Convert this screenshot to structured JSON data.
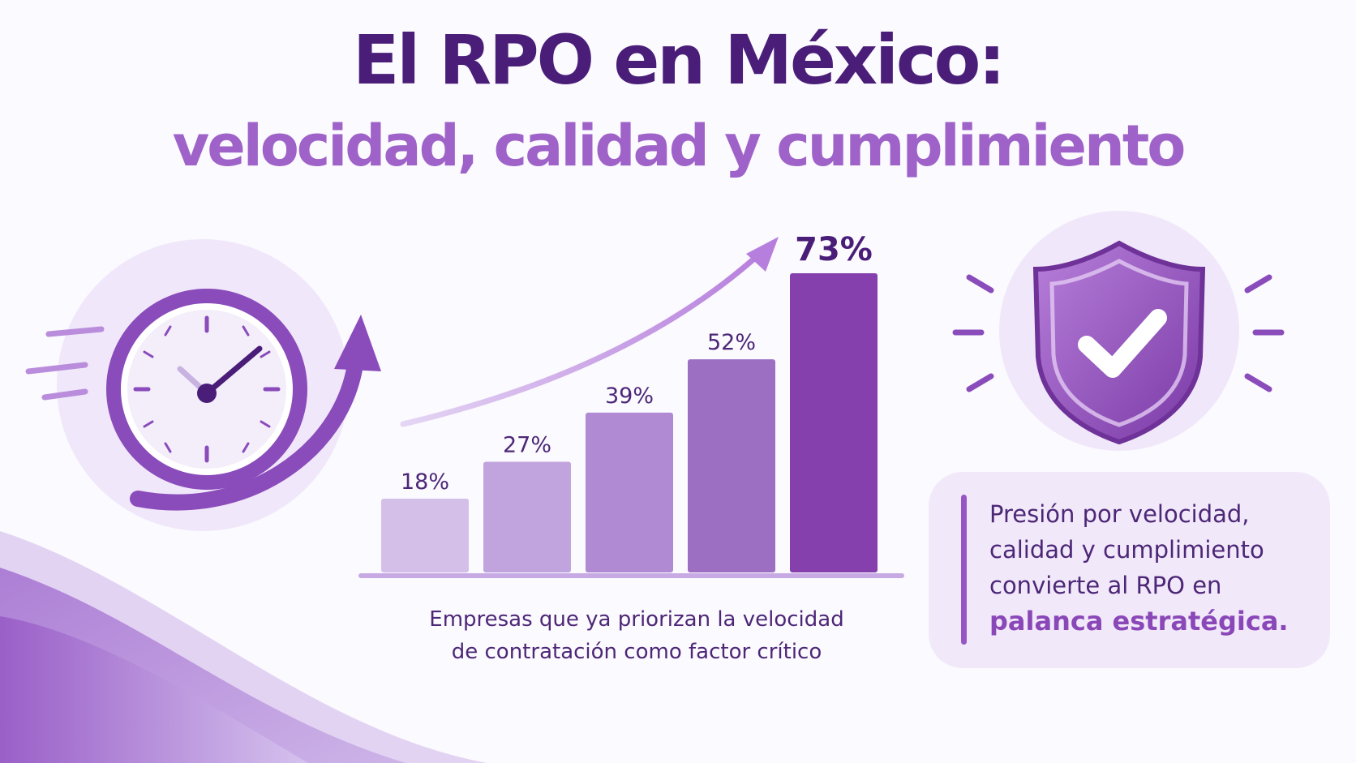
{
  "header": {
    "title_line1": "El RPO en México:",
    "title_line2": "velocidad, calidad y cumplimiento"
  },
  "chart_data": {
    "type": "bar",
    "categories": [
      "",
      "",
      "",
      "",
      ""
    ],
    "values": [
      18,
      27,
      39,
      52,
      73
    ],
    "value_labels": [
      "18%",
      "27%",
      "39%",
      "52%",
      "73%"
    ],
    "unit": "%",
    "ylim": [
      0,
      80
    ],
    "grid": false,
    "caption_lines": [
      "Empresas que ya priorizan la velocidad",
      "de contratación como factor crítico"
    ],
    "colors": [
      "#d3bfe8",
      "#c1a4de",
      "#b08bd4",
      "#9d6fc3",
      "#8540ad"
    ],
    "trend_arrow": true
  },
  "callout": {
    "line1": "Presión por velocidad,",
    "line2": "calidad y cumplimiento",
    "line3": "convierte al RPO en",
    "emphasis": "palanca estratégica."
  },
  "icons": {
    "left": "clock-speed-icon",
    "right": "shield-check-icon"
  },
  "colors": {
    "title": "#4a1e78",
    "subtitle": "#9e62c8",
    "accent": "#8a47b8",
    "background": "#fbfaff"
  }
}
